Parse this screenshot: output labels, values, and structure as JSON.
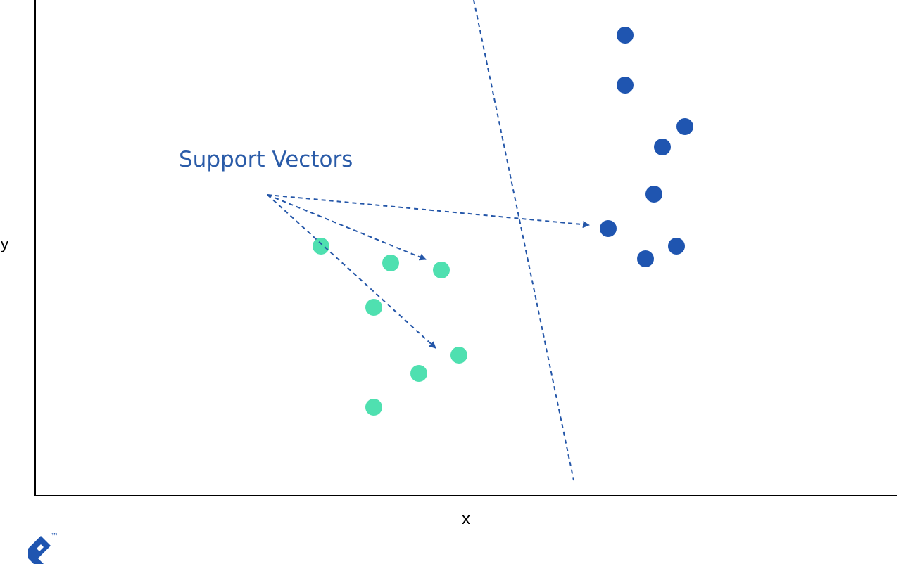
{
  "annotation": "Support Vectors",
  "axes": {
    "x_label": "x",
    "y_label": "y"
  },
  "logo": {
    "trademark": "™"
  }
}
